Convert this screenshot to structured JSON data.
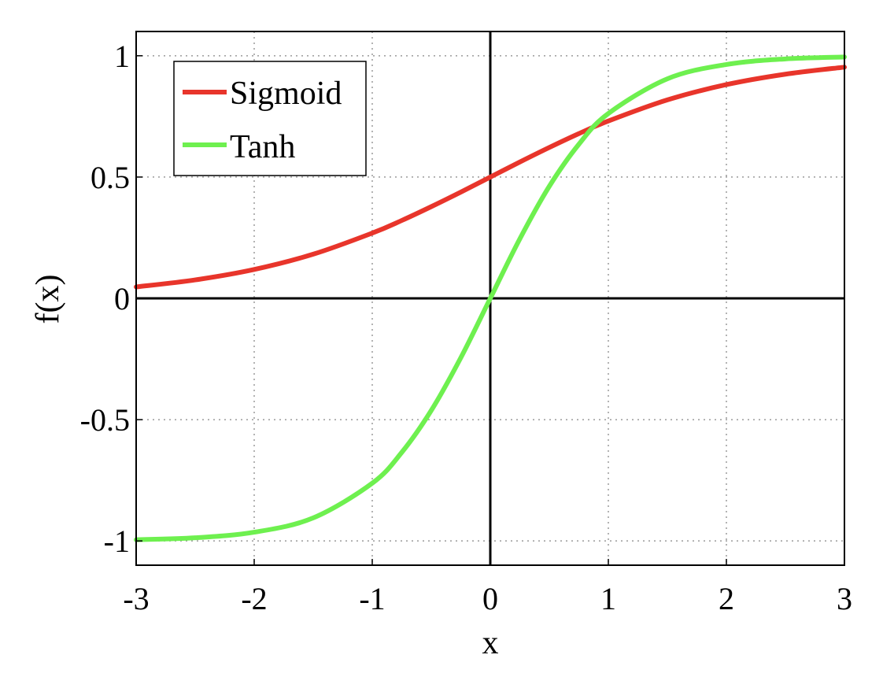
{
  "chart_data": {
    "type": "line",
    "title": "",
    "xlabel": "x",
    "ylabel": "f(x)",
    "xlim": [
      -3,
      3
    ],
    "ylim": [
      -1.1,
      1.1
    ],
    "xticks": [
      -3,
      -2,
      -1,
      0,
      1,
      2,
      3
    ],
    "xtick_labels": [
      "-3",
      "-2",
      "-1",
      "0",
      "1",
      "2",
      "3"
    ],
    "yticks": [
      -1,
      -0.5,
      0,
      0.5,
      1
    ],
    "ytick_labels": [
      "-1",
      "-0.5",
      "0",
      "0.5",
      "1"
    ],
    "grid": true,
    "legend_position": "top-left",
    "x": [
      -3,
      -2.5,
      -2,
      -1.5,
      -1,
      -0.75,
      -0.5,
      -0.25,
      0,
      0.25,
      0.5,
      0.75,
      1,
      1.5,
      2,
      2.5,
      3
    ],
    "series": [
      {
        "name": "Sigmoid",
        "color": "#e8352b",
        "values": [
          0.047,
          0.076,
          0.119,
          0.182,
          0.269,
          0.321,
          0.378,
          0.438,
          0.5,
          0.562,
          0.622,
          0.679,
          0.731,
          0.818,
          0.881,
          0.924,
          0.953
        ]
      },
      {
        "name": "Tanh",
        "color": "#6ef04f",
        "values": [
          -0.995,
          -0.987,
          -0.964,
          -0.905,
          -0.762,
          -0.635,
          -0.462,
          -0.245,
          0,
          0.245,
          0.462,
          0.635,
          0.762,
          0.905,
          0.964,
          0.987,
          0.995
        ]
      }
    ]
  }
}
